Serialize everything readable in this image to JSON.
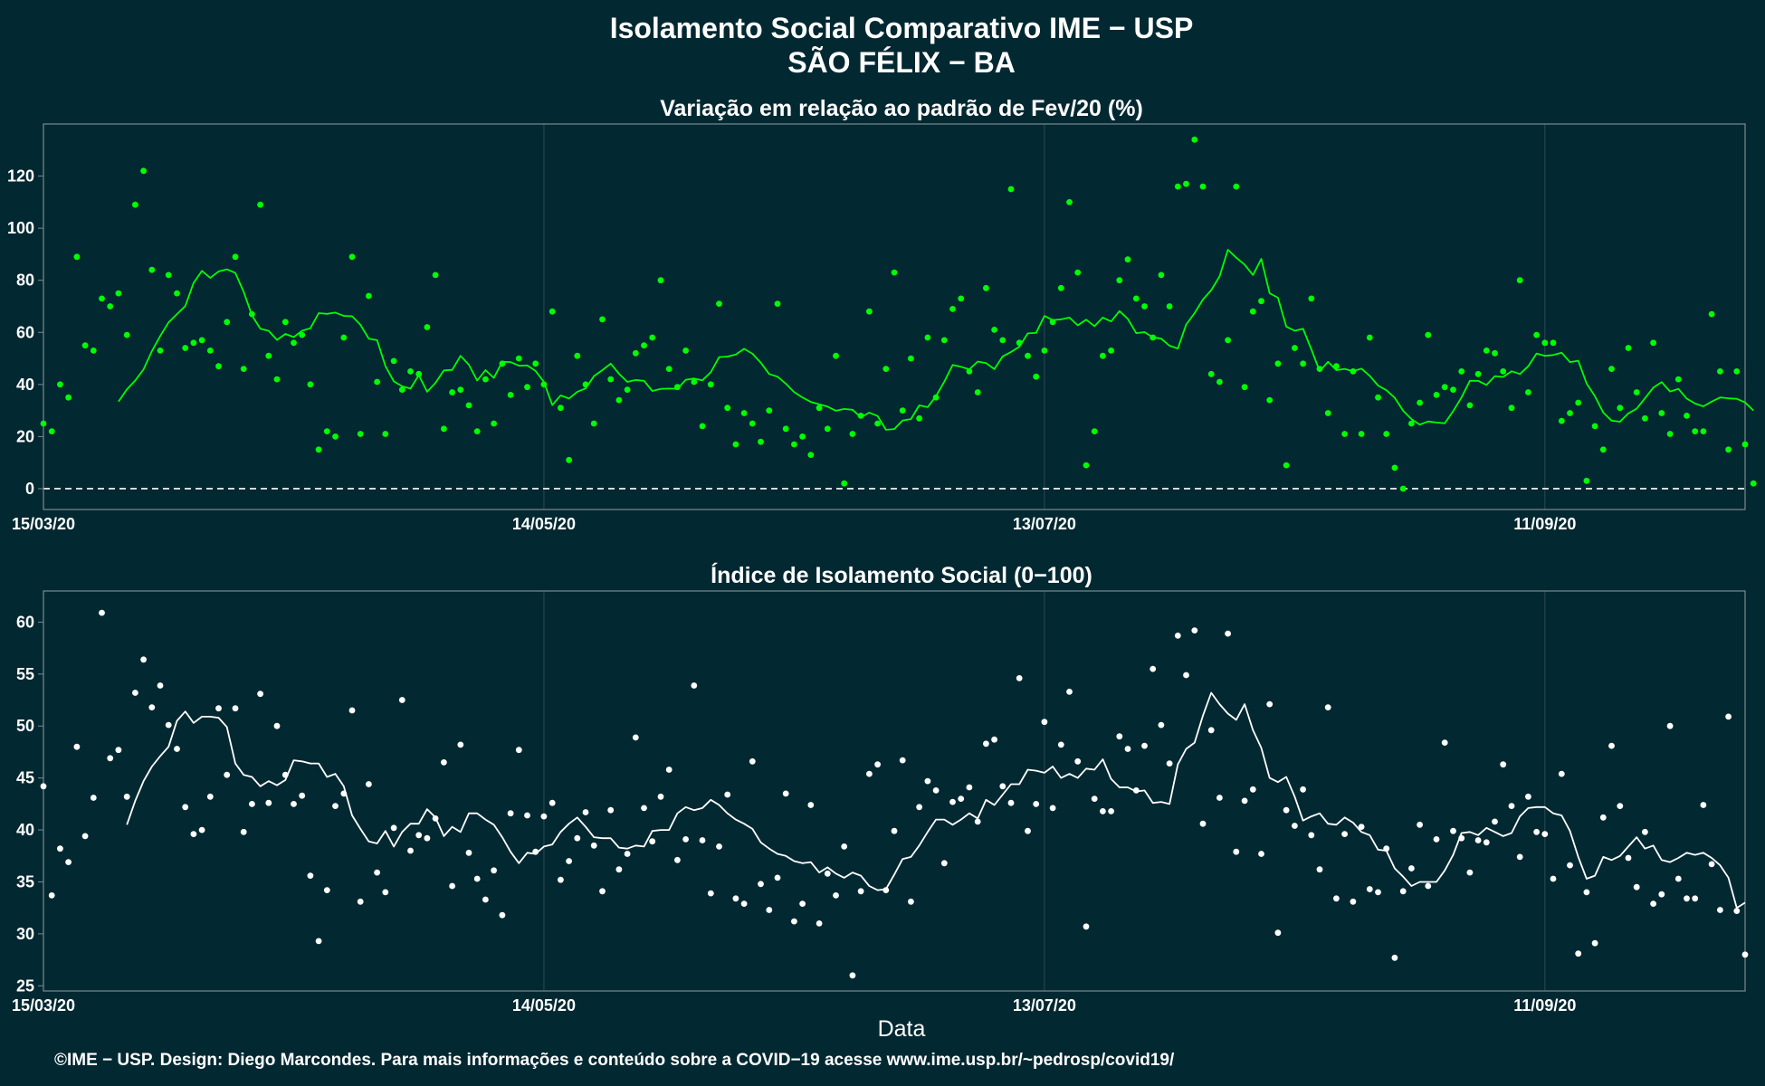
{
  "page": {
    "title_line1": "Isolamento Social Comparativo IME − USP",
    "title_line2": "SÃO FÉLIX − BA",
    "xlabel": "Data",
    "footer": "©IME − USP. Design: Diego Marcondes. Para mais informações e conteúdo sobre a COVID−19 acesse www.ime.usp.br/~pedrosp/covid19/"
  },
  "colors": {
    "background": "#022831",
    "panel_border": "#7a8a8e",
    "grid": "#2e4a52",
    "top_series": "#00ff00",
    "bottom_series": "#ffffff",
    "text": "#ffffff"
  },
  "chart_data": [
    {
      "type": "scatter",
      "title": "Variação em relação ao padrão de Fev/20 (%)",
      "x_start": "15/03/20",
      "x_end": "05/10/20",
      "x_ticks": [
        "15/03/20",
        "14/05/20",
        "13/07/20",
        "11/09/20"
      ],
      "ylim": [
        -8,
        140
      ],
      "y_ticks": [
        0,
        20,
        40,
        60,
        80,
        100,
        120
      ],
      "reference_line": 0,
      "grid": true,
      "series": [
        {
          "kind": "points",
          "values": [
            25,
            22,
            40,
            35,
            89,
            55,
            53,
            73,
            70,
            75,
            59,
            109,
            122,
            84,
            53,
            82,
            75,
            54,
            56,
            57,
            53,
            47,
            64,
            89,
            46,
            67,
            109,
            51,
            42,
            64,
            56,
            59,
            40,
            15,
            22,
            20,
            58,
            89,
            21,
            74,
            41,
            21,
            49,
            38,
            45,
            44,
            62,
            82,
            23,
            37,
            38,
            32,
            22,
            42,
            25,
            48,
            36,
            50,
            39,
            48,
            40,
            68,
            31,
            11,
            51,
            40,
            25,
            65,
            42,
            34,
            38,
            52,
            55,
            58,
            80,
            46,
            39,
            53,
            41,
            24,
            40,
            71,
            31,
            17,
            29,
            25,
            18,
            30,
            71,
            23,
            17,
            20,
            13,
            31,
            23,
            51,
            2,
            21,
            28,
            68,
            25,
            46,
            83,
            30,
            50,
            27,
            58,
            35,
            57,
            69,
            73,
            45,
            37,
            77,
            61,
            57,
            115,
            56,
            51,
            43,
            53,
            64,
            77,
            110,
            83,
            9,
            22,
            51,
            53,
            80,
            88,
            73,
            70,
            58,
            82,
            70,
            116,
            117,
            134,
            116,
            44,
            41,
            57,
            116,
            39,
            68,
            72,
            34,
            48,
            9,
            54,
            48,
            73,
            46,
            29,
            47,
            21,
            45,
            21,
            58,
            35,
            21,
            8,
            0,
            25,
            33,
            59,
            36,
            39,
            38,
            45,
            32,
            44,
            53,
            52,
            45,
            31,
            80,
            37,
            59,
            56,
            56,
            26,
            29,
            33,
            3,
            24,
            15,
            46,
            31,
            54,
            37,
            27,
            56,
            29,
            21,
            42,
            28,
            22,
            22,
            67,
            45,
            15,
            45,
            17,
            2
          ]
        },
        {
          "kind": "moving_average",
          "values": [
            33.4,
            38.1,
            41.5,
            45.8,
            52.8,
            58.6,
            63.8,
            67.0,
            70.1,
            79.0,
            83.6,
            80.9,
            83.4,
            84.2,
            82.8,
            75.6,
            66.5,
            61.4,
            60.6,
            57.1,
            59.4,
            58.2,
            60.6,
            61.6,
            67.4,
            67.1,
            67.6,
            66.3,
            66.2,
            62.9,
            57.6,
            57.0,
            47.1,
            41.2,
            39.3,
            38.4,
            43.6,
            37.2,
            40.6,
            45.4,
            45.6,
            51.0,
            47.6,
            41.5,
            45.5,
            42.5,
            48.7,
            48.6,
            47.2,
            47.3,
            45.2,
            41.0,
            32.1,
            35.8,
            34.6,
            37.2,
            38.5,
            43.2,
            45.5,
            48.0,
            44.1,
            41.0,
            41.7,
            41.4,
            37.5,
            38.3,
            38.4,
            38.3,
            41.8,
            42.3,
            41.6,
            44.7,
            50.5,
            50.7,
            51.5,
            53.7,
            51.8,
            48.4,
            44.0,
            43.0,
            40.3,
            37.1,
            35.0,
            33.3,
            32.4,
            31.5,
            29.9,
            30.6,
            30.3,
            27.4,
            29.2,
            27.9,
            22.6,
            22.9,
            26.2,
            26.7,
            32.0,
            31.3,
            35.5,
            41.1,
            47.5,
            46.8,
            45.8,
            48.8,
            48.2,
            45.9,
            50.8,
            52.5,
            54.5,
            59.6,
            59.8,
            66.3,
            64.7,
            65.0,
            65.7,
            62.7,
            64.9,
            62.4,
            65.7,
            64.2,
            68.2,
            65.2,
            59.7,
            60.1,
            58.1,
            57.6,
            54.9,
            53.8,
            63.0,
            67.4,
            72.6,
            76.2,
            81.5,
            91.7,
            88.7,
            86.0,
            82.0,
            88.2,
            75.0,
            73.3,
            62.2,
            60.6,
            61.4,
            53.5,
            45.1,
            48.7,
            45.5,
            46.0,
            45.1,
            46.1,
            43.3,
            39.6,
            37.8,
            34.9,
            29.9,
            26.7,
            24.6,
            25.8,
            25.4,
            25.1,
            29.8,
            35.0,
            41.4,
            41.4,
            39.8,
            43.2,
            42.9,
            45.1,
            44.0,
            47.0,
            51.9,
            51.0,
            51.3,
            52.2,
            48.6,
            49.1,
            40.4,
            35.5,
            29.2,
            26.1,
            25.7,
            28.9,
            30.7,
            34.7,
            38.8,
            40.9,
            37.3,
            38.3,
            34.6,
            32.7,
            31.6,
            33.4,
            35.0,
            34.7,
            34.5,
            33.1,
            30.0
          ]
        }
      ]
    },
    {
      "type": "scatter",
      "title": "Índice de Isolamento Social (0−100)",
      "x_start": "15/03/20",
      "x_end": "05/10/20",
      "x_ticks": [
        "15/03/20",
        "14/05/20",
        "13/07/20",
        "11/09/20"
      ],
      "xlabel": "Data",
      "ylim": [
        24.5,
        63
      ],
      "y_ticks": [
        25,
        30,
        35,
        40,
        45,
        50,
        55,
        60
      ],
      "grid": true,
      "series": [
        {
          "kind": "points",
          "values": [
            44.2,
            33.7,
            38.2,
            36.9,
            48.0,
            39.4,
            43.1,
            60.9,
            46.9,
            47.7,
            43.2,
            53.2,
            56.4,
            51.8,
            53.9,
            50.1,
            47.8,
            42.2,
            39.6,
            40.0,
            43.2,
            51.7,
            45.3,
            51.7,
            39.8,
            42.5,
            53.1,
            42.6,
            50.0,
            45.3,
            42.5,
            43.3,
            35.6,
            29.3,
            34.2,
            42.3,
            43.5,
            51.5,
            33.1,
            44.4,
            35.9,
            34.0,
            40.2,
            52.5,
            38.0,
            39.5,
            39.2,
            41.1,
            46.5,
            34.6,
            48.2,
            37.8,
            35.3,
            33.3,
            36.1,
            31.8,
            41.6,
            47.7,
            41.4,
            37.9,
            41.3,
            42.6,
            35.2,
            37.0,
            39.2,
            41.7,
            38.5,
            34.1,
            41.9,
            36.2,
            37.7,
            48.9,
            42.1,
            38.9,
            43.2,
            45.8,
            37.1,
            39.1,
            53.9,
            39.0,
            33.9,
            38.4,
            43.4,
            33.4,
            32.9,
            46.6,
            34.8,
            32.3,
            35.4,
            43.5,
            31.2,
            32.9,
            42.4,
            31.0,
            35.8,
            33.7,
            38.4,
            26.0,
            34.1,
            45.4,
            46.3,
            34.2,
            39.9,
            46.7,
            33.1,
            42.2,
            44.7,
            43.8,
            36.8,
            42.7,
            43.0,
            44.1,
            40.8,
            48.3,
            48.7,
            44.2,
            42.6,
            54.6,
            39.9,
            42.5,
            50.4,
            42.1,
            48.2,
            53.3,
            46.6,
            30.7,
            43.0,
            41.8,
            41.8,
            49.0,
            47.8,
            43.8,
            48.1,
            55.5,
            50.1,
            46.4,
            58.7,
            54.9,
            59.2,
            40.6,
            49.6,
            43.1,
            58.9,
            37.9,
            42.8,
            43.9,
            37.7,
            52.1,
            30.1,
            41.9,
            40.4,
            43.9,
            39.5,
            36.2,
            51.8,
            33.4,
            39.6,
            33.1,
            40.3,
            34.3,
            34.0,
            38.2,
            27.7,
            34.1,
            36.3,
            40.5,
            34.6,
            39.1,
            48.4,
            39.9,
            39.2,
            35.9,
            39.0,
            38.8,
            40.8,
            46.3,
            42.3,
            37.4,
            43.2,
            39.8,
            39.6,
            35.3,
            45.4,
            36.6,
            28.1,
            34.0,
            29.1,
            41.2,
            48.1,
            42.3,
            37.3,
            34.5,
            39.8,
            32.9,
            33.8,
            50.0,
            35.3,
            33.4,
            33.4,
            42.4,
            36.7,
            32.3,
            50.9,
            32.2,
            28.0
          ]
        },
        {
          "kind": "moving_average",
          "values": [
            40.5,
            42.8,
            44.7,
            46.1,
            47.1,
            48.0,
            50.5,
            51.4,
            50.3,
            50.9,
            50.9,
            50.8,
            49.9,
            46.4,
            45.3,
            45.1,
            44.2,
            44.7,
            44.3,
            44.8,
            46.7,
            46.6,
            46.4,
            46.4,
            45.1,
            45.4,
            44.2,
            41.4,
            40.1,
            38.9,
            38.7,
            39.9,
            38.4,
            39.8,
            40.6,
            40.6,
            42.0,
            41.2,
            39.4,
            40.3,
            39.8,
            41.6,
            41.6,
            41.0,
            40.5,
            39.3,
            37.9,
            36.8,
            37.8,
            37.7,
            38.4,
            38.6,
            39.8,
            40.6,
            41.2,
            40.3,
            39.3,
            39.2,
            39.2,
            38.3,
            38.2,
            38.5,
            38.4,
            39.9,
            40.0,
            40.0,
            41.6,
            42.2,
            41.9,
            42.1,
            42.9,
            42.4,
            41.6,
            41.0,
            40.6,
            40.1,
            38.8,
            38.2,
            37.7,
            37.5,
            37.0,
            36.8,
            36.9,
            35.9,
            36.4,
            35.8,
            35.4,
            35.9,
            35.6,
            34.6,
            34.2,
            34.3,
            35.7,
            37.2,
            37.4,
            38.5,
            39.8,
            41.0,
            41.0,
            40.5,
            41.0,
            41.6,
            41.1,
            42.9,
            42.4,
            43.4,
            44.4,
            44.4,
            45.8,
            45.7,
            45.5,
            46.1,
            45.0,
            45.4,
            45.0,
            45.9,
            45.8,
            46.8,
            44.9,
            44.1,
            44.1,
            43.7,
            43.8,
            42.6,
            42.7,
            42.5,
            46.3,
            47.8,
            48.4,
            51.0,
            53.2,
            52.1,
            51.2,
            50.6,
            52.1,
            49.6,
            47.9,
            45.0,
            44.6,
            45.1,
            43.2,
            40.9,
            41.3,
            41.6,
            40.6,
            40.5,
            41.2,
            40.7,
            39.8,
            39.5,
            38.1,
            38.0,
            36.3,
            35.5,
            34.6,
            35.0,
            35.0,
            35.0,
            36.1,
            37.6,
            39.7,
            39.8,
            39.5,
            40.2,
            39.8,
            39.4,
            39.7,
            41.3,
            42.1,
            42.2,
            42.2,
            41.6,
            41.4,
            39.9,
            37.4,
            35.3,
            35.6,
            37.4,
            37.1,
            37.5,
            38.4,
            39.3,
            38.2,
            38.5,
            37.1,
            36.9,
            37.3,
            37.8,
            37.6,
            37.8,
            37.3,
            36.6,
            35.4,
            32.5,
            33.0
          ]
        }
      ]
    }
  ]
}
